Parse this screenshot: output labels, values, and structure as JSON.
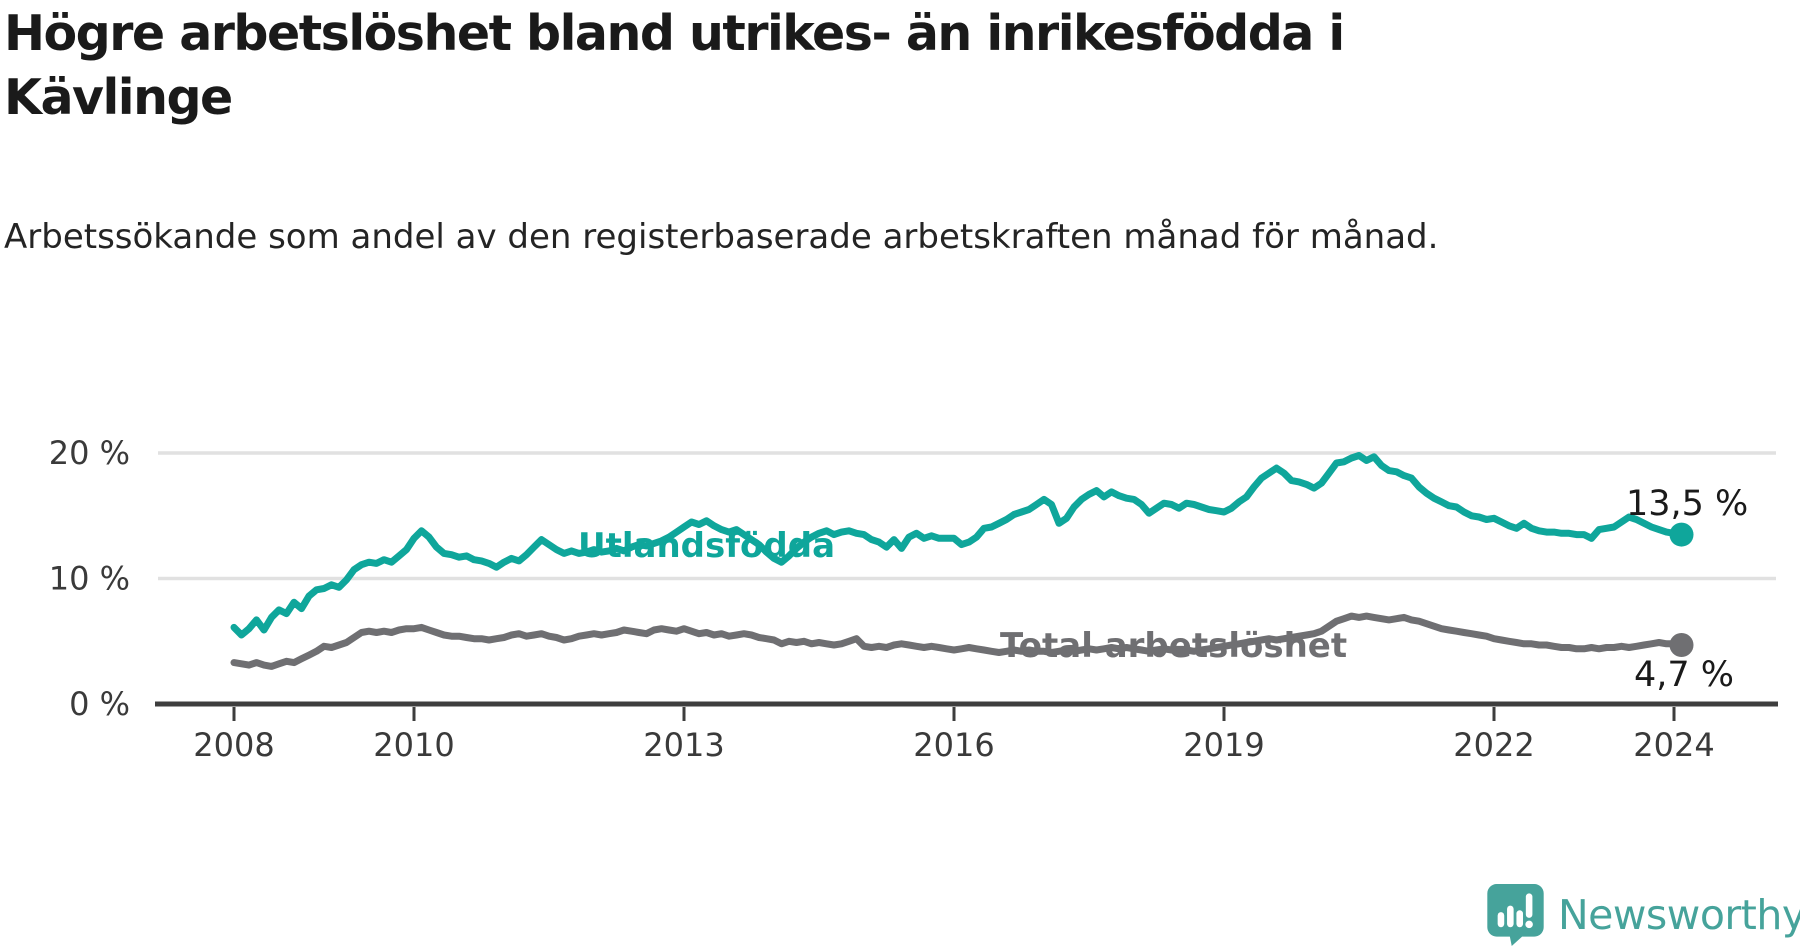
{
  "header": {
    "title": "Högre arbetslöshet bland utrikes- än inrikesfödda i Kävlinge",
    "subtitle": "Arbetssökande som andel av den registerbaserade arbetskraften månad för månad."
  },
  "footer": {
    "brand": "Newsworthy",
    "brand_color": "#46a39b",
    "logo_icon": "speech-bubble-bar-chart-icon"
  },
  "chart_data": {
    "type": "line",
    "title": "Högre arbetslöshet bland utrikes- än inrikesfödda i Kävlinge",
    "xlabel": "",
    "ylabel": "",
    "x_start_year": 2008,
    "points_per_year": 12,
    "ylim": [
      0,
      21.7
    ],
    "grid": "horizontal",
    "x_ticks": [
      {
        "label": "2008",
        "year": 2008
      },
      {
        "label": "2010",
        "year": 2010
      },
      {
        "label": "2013",
        "year": 2013
      },
      {
        "label": "2016",
        "year": 2016
      },
      {
        "label": "2019",
        "year": 2019
      },
      {
        "label": "2022",
        "year": 2022
      },
      {
        "label": "2024",
        "year": 2024
      }
    ],
    "y_ticks": [
      {
        "label": "0 %",
        "value": 0
      },
      {
        "label": "10 %",
        "value": 10
      },
      {
        "label": "20 %",
        "value": 20
      }
    ],
    "series": [
      {
        "name": "Utlandsfödda",
        "color": "#0fa69b",
        "end_label": "13,5 %",
        "values": [
          6.1,
          5.5,
          6.0,
          6.7,
          5.9,
          6.9,
          7.5,
          7.2,
          8.1,
          7.6,
          8.6,
          9.1,
          9.2,
          9.5,
          9.3,
          9.9,
          10.7,
          11.1,
          11.3,
          11.2,
          11.5,
          11.3,
          11.8,
          12.3,
          13.2,
          13.8,
          13.3,
          12.5,
          12.0,
          11.9,
          11.7,
          11.8,
          11.5,
          11.4,
          11.2,
          10.9,
          11.3,
          11.6,
          11.4,
          11.9,
          12.5,
          13.1,
          12.7,
          12.3,
          12.0,
          12.2,
          12.0,
          12.1,
          12.3,
          12.1,
          12.2,
          12.4,
          12.2,
          12.5,
          12.7,
          12.6,
          12.8,
          13.0,
          13.3,
          13.7,
          14.1,
          14.5,
          14.3,
          14.6,
          14.2,
          13.9,
          13.7,
          13.9,
          13.5,
          13.1,
          12.7,
          12.1,
          11.6,
          11.3,
          11.8,
          12.4,
          12.9,
          13.3,
          13.6,
          13.8,
          13.5,
          13.7,
          13.8,
          13.6,
          13.5,
          13.1,
          12.9,
          12.5,
          13.1,
          12.4,
          13.3,
          13.6,
          13.2,
          13.4,
          13.2,
          13.2,
          13.2,
          12.7,
          12.9,
          13.3,
          14.0,
          14.1,
          14.4,
          14.7,
          15.1,
          15.3,
          15.5,
          15.9,
          16.3,
          15.9,
          14.4,
          14.8,
          15.7,
          16.3,
          16.7,
          17.0,
          16.5,
          16.9,
          16.6,
          16.4,
          16.3,
          15.9,
          15.2,
          15.6,
          16.0,
          15.9,
          15.6,
          16.0,
          15.9,
          15.7,
          15.5,
          15.4,
          15.3,
          15.6,
          16.1,
          16.5,
          17.3,
          18.0,
          18.4,
          18.8,
          18.4,
          17.8,
          17.7,
          17.5,
          17.2,
          17.6,
          18.4,
          19.2,
          19.3,
          19.6,
          19.8,
          19.4,
          19.7,
          19.0,
          18.6,
          18.5,
          18.2,
          18.0,
          17.3,
          16.8,
          16.4,
          16.1,
          15.8,
          15.7,
          15.3,
          15.0,
          14.9,
          14.7,
          14.8,
          14.5,
          14.2,
          14.0,
          14.4,
          14.0,
          13.8,
          13.7,
          13.7,
          13.6,
          13.6,
          13.5,
          13.5,
          13.2,
          13.9,
          14.0,
          14.1,
          14.5,
          14.9,
          14.7,
          14.4,
          14.1,
          13.9,
          13.7,
          13.6,
          13.5
        ]
      },
      {
        "name": "Total arbetslöshet",
        "color": "#6f6f72",
        "end_label": "4,7 %",
        "values": [
          3.3,
          3.2,
          3.1,
          3.3,
          3.1,
          3.0,
          3.2,
          3.4,
          3.3,
          3.6,
          3.9,
          4.2,
          4.6,
          4.5,
          4.7,
          4.9,
          5.3,
          5.7,
          5.8,
          5.7,
          5.8,
          5.7,
          5.9,
          6.0,
          6.0,
          6.1,
          5.9,
          5.7,
          5.5,
          5.4,
          5.4,
          5.3,
          5.2,
          5.2,
          5.1,
          5.2,
          5.3,
          5.5,
          5.6,
          5.4,
          5.5,
          5.6,
          5.4,
          5.3,
          5.1,
          5.2,
          5.4,
          5.5,
          5.6,
          5.5,
          5.6,
          5.7,
          5.9,
          5.8,
          5.7,
          5.6,
          5.9,
          6.0,
          5.9,
          5.8,
          6.0,
          5.8,
          5.6,
          5.7,
          5.5,
          5.6,
          5.4,
          5.5,
          5.6,
          5.5,
          5.3,
          5.2,
          5.1,
          4.8,
          5.0,
          4.9,
          5.0,
          4.8,
          4.9,
          4.8,
          4.7,
          4.8,
          5.0,
          5.2,
          4.6,
          4.5,
          4.6,
          4.5,
          4.7,
          4.8,
          4.7,
          4.6,
          4.5,
          4.6,
          4.5,
          4.4,
          4.3,
          4.4,
          4.5,
          4.4,
          4.3,
          4.2,
          4.1,
          4.2,
          4.3,
          4.2,
          4.3,
          4.2,
          4.2,
          4.1,
          4.2,
          4.3,
          4.2,
          4.3,
          4.4,
          4.3,
          4.4,
          4.5,
          4.4,
          4.5,
          4.4,
          4.3,
          4.2,
          4.3,
          4.4,
          4.3,
          4.2,
          4.3,
          4.2,
          4.3,
          4.4,
          4.5,
          4.6,
          4.7,
          4.8,
          4.9,
          5.0,
          5.1,
          5.2,
          5.1,
          5.2,
          5.3,
          5.4,
          5.5,
          5.6,
          5.8,
          6.2,
          6.6,
          6.8,
          7.0,
          6.9,
          7.0,
          6.9,
          6.8,
          6.7,
          6.8,
          6.9,
          6.7,
          6.6,
          6.4,
          6.2,
          6.0,
          5.9,
          5.8,
          5.7,
          5.6,
          5.5,
          5.4,
          5.2,
          5.1,
          5.0,
          4.9,
          4.8,
          4.8,
          4.7,
          4.7,
          4.6,
          4.5,
          4.5,
          4.4,
          4.4,
          4.5,
          4.4,
          4.5,
          4.5,
          4.6,
          4.5,
          4.6,
          4.7,
          4.8,
          4.9,
          4.8,
          4.8,
          4.7
        ]
      }
    ],
    "colors": {
      "grid": "#e1e1e1",
      "axis": "#3e3e3e",
      "tick_text": "#3a3a3a"
    }
  }
}
